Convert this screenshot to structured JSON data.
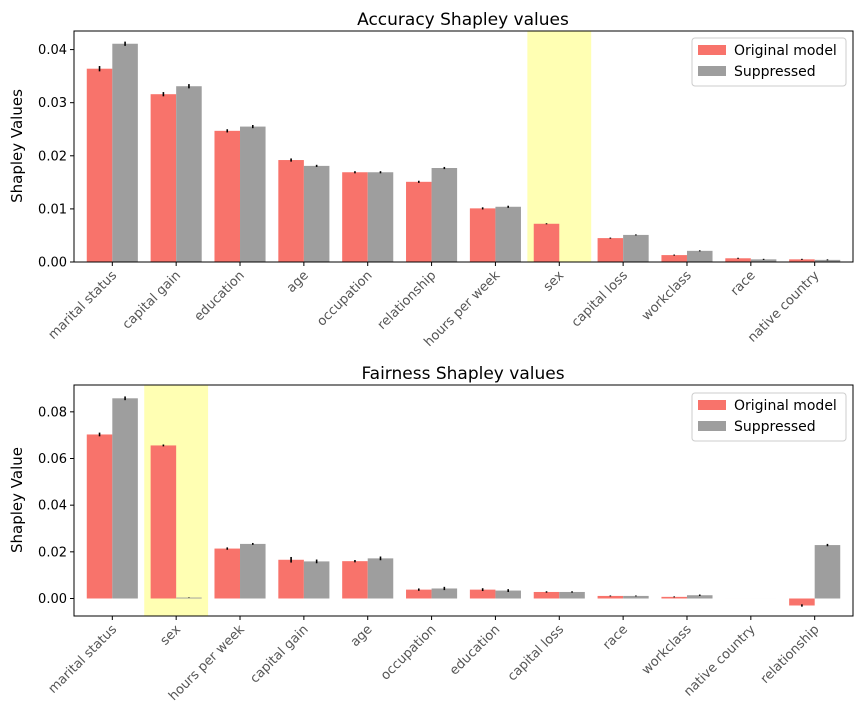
{
  "chart_data": [
    {
      "type": "bar",
      "title": "Accuracy Shapley values",
      "xlabel": "",
      "ylabel": "Shapley Values",
      "ylim": [
        0,
        0.0435
      ],
      "yticks": [
        0.0,
        0.01,
        0.02,
        0.03,
        0.04
      ],
      "ytick_labels": [
        "0.00",
        "0.01",
        "0.02",
        "0.03",
        "0.04"
      ],
      "categories": [
        "marital status",
        "capital gain",
        "education",
        "age",
        "occupation",
        "relationship",
        "hours per week",
        "sex",
        "capital loss",
        "workclass",
        "race",
        "native country"
      ],
      "series": [
        {
          "name": "Original model",
          "color": "#f8736b",
          "values": [
            0.0364,
            0.0316,
            0.0247,
            0.0192,
            0.0169,
            0.0151,
            0.0101,
            0.0072,
            0.0045,
            0.0013,
            0.0007,
            0.0005
          ],
          "errors": [
            0.0005,
            0.0004,
            0.0003,
            0.0003,
            0.0002,
            0.0002,
            0.0002,
            0.0001,
            0.0001,
            0.0001,
            0.0001,
            0.0001
          ]
        },
        {
          "name": "Suppressed",
          "color": "#9e9e9e",
          "values": [
            0.0411,
            0.0331,
            0.0255,
            0.0181,
            0.0169,
            0.0177,
            0.0104,
            0.0,
            0.0051,
            0.0021,
            0.0005,
            0.0004
          ],
          "errors": [
            0.0004,
            0.0004,
            0.0003,
            0.0002,
            0.0002,
            0.0002,
            0.0002,
            0.0,
            0.0001,
            0.0001,
            0.0001,
            0.0001
          ]
        }
      ],
      "highlight_category": "sex",
      "highlight_color": "#ffffb3",
      "legend": "top-right",
      "grid": false
    },
    {
      "type": "bar",
      "title": "Fairness Shapley values",
      "xlabel": "",
      "ylabel": "Shapley Value",
      "ylim": [
        -0.0075,
        0.0915
      ],
      "yticks": [
        0.0,
        0.02,
        0.04,
        0.06,
        0.08
      ],
      "ytick_labels": [
        "0.00",
        "0.02",
        "0.04",
        "0.06",
        "0.08"
      ],
      "categories": [
        "marital status",
        "sex",
        "hours per week",
        "capital gain",
        "age",
        "occupation",
        "education",
        "capital loss",
        "race",
        "workclass",
        "native country",
        "relationship"
      ],
      "series": [
        {
          "name": "Original model",
          "color": "#f8736b",
          "values": [
            0.0703,
            0.0656,
            0.0214,
            0.0166,
            0.016,
            0.0038,
            0.0038,
            0.0028,
            0.0011,
            0.0007,
            0.0,
            -0.003
          ],
          "errors": [
            0.0008,
            0.0004,
            0.0005,
            0.0012,
            0.0005,
            0.0005,
            0.0006,
            0.0003,
            0.0002,
            0.0002,
            0.0,
            0.0005
          ]
        },
        {
          "name": "Suppressed",
          "color": "#9e9e9e",
          "values": [
            0.0858,
            0.0004,
            0.0234,
            0.0159,
            0.0172,
            0.0043,
            0.0034,
            0.0028,
            0.0011,
            0.0014,
            0.0,
            0.0229
          ],
          "errors": [
            0.0008,
            0.0001,
            0.0004,
            0.0008,
            0.0008,
            0.0007,
            0.0006,
            0.0003,
            0.0002,
            0.0003,
            0.0,
            0.0005
          ]
        }
      ],
      "highlight_category": "sex",
      "highlight_color": "#ffffb3",
      "legend": "top-right",
      "grid": false
    }
  ]
}
